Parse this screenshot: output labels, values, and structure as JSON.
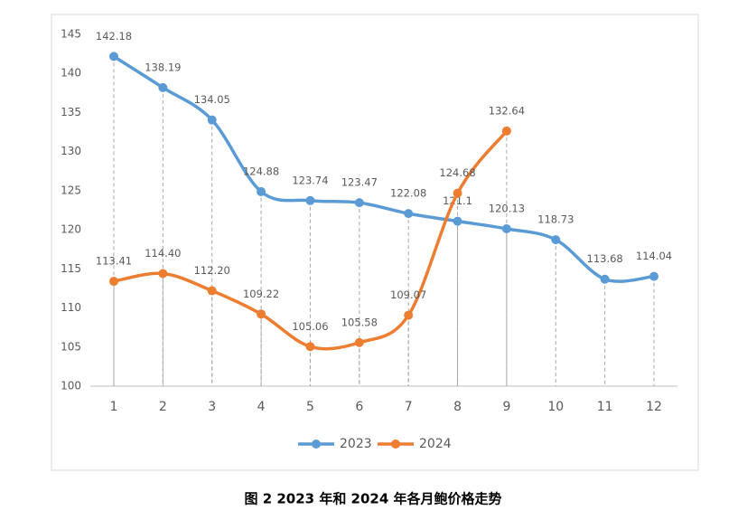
{
  "chart_data": {
    "type": "line",
    "categories": [
      "1",
      "2",
      "3",
      "4",
      "5",
      "6",
      "7",
      "8",
      "9",
      "10",
      "11",
      "12"
    ],
    "series": [
      {
        "name": "2023",
        "color": "#5b9bd5",
        "values": [
          142.18,
          138.19,
          134.05,
          124.88,
          123.74,
          123.47,
          122.08,
          121.1,
          120.13,
          118.73,
          113.68,
          114.04
        ],
        "value_labels": [
          "142.18",
          "138.19",
          "134.05",
          "124.88",
          "123.74",
          "123.47",
          "122.08",
          "121.1",
          "120.13",
          "118.73",
          "113.68",
          "114.04"
        ]
      },
      {
        "name": "2024",
        "color": "#ed7d31",
        "values": [
          113.41,
          114.4,
          112.2,
          109.22,
          105.06,
          105.58,
          109.07,
          124.68,
          132.64,
          null,
          null,
          null
        ],
        "value_labels": [
          "113.41",
          "114.40",
          "112.20",
          "109.22",
          "105.06",
          "105.58",
          "109.07",
          "124.68",
          "132.64",
          null,
          null,
          null
        ]
      }
    ],
    "ylim": [
      100,
      145
    ],
    "yticks": [
      100,
      105,
      110,
      115,
      120,
      125,
      130,
      135,
      140,
      145
    ],
    "legend": "bottom",
    "smooth": true,
    "drop_lines": true,
    "caption": "图 2 2023 年和 2024 年各月鲍价格走势"
  }
}
